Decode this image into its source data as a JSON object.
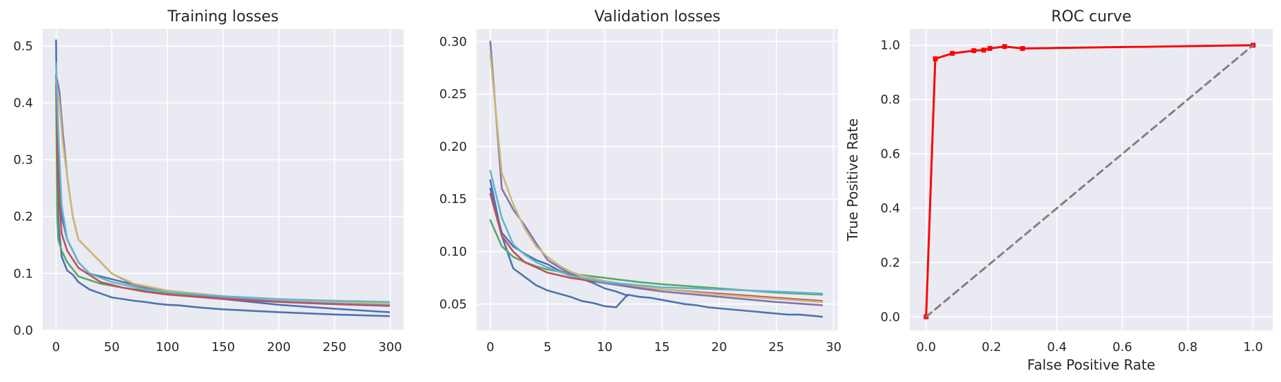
{
  "chart_data": [
    {
      "type": "line",
      "title": "Training losses",
      "xlabel": "",
      "ylabel": "",
      "xlim": [
        -12,
        312
      ],
      "ylim": [
        0.0,
        0.53
      ],
      "xticks": [
        0,
        50,
        100,
        150,
        200,
        250,
        300
      ],
      "xtick_labels": [
        "0",
        "50",
        "100",
        "150",
        "200",
        "250",
        "300"
      ],
      "yticks": [
        0.0,
        0.1,
        0.2,
        0.3,
        0.4,
        0.5
      ],
      "ytick_labels": [
        "0.0",
        "0.1",
        "0.2",
        "0.3",
        "0.4",
        "0.5"
      ],
      "grid": true,
      "series": [
        {
          "color": "#4c72b0",
          "x": [
            0,
            1,
            2,
            3,
            5,
            8,
            10,
            15,
            20,
            30,
            40,
            50,
            60,
            70,
            80,
            90,
            100,
            110,
            120,
            130,
            150,
            200,
            250,
            299
          ],
          "y": [
            0.51,
            0.3,
            0.2,
            0.17,
            0.13,
            0.115,
            0.105,
            0.098,
            0.085,
            0.072,
            0.065,
            0.058,
            0.055,
            0.052,
            0.05,
            0.047,
            0.045,
            0.044,
            0.042,
            0.04,
            0.037,
            0.032,
            0.028,
            0.025
          ]
        },
        {
          "color": "#4c72b0",
          "x": [
            0,
            2,
            5,
            10,
            20,
            30,
            40,
            50,
            60,
            80,
            100,
            120,
            130,
            150,
            200,
            250,
            299
          ],
          "y": [
            0.44,
            0.3,
            0.2,
            0.16,
            0.12,
            0.1,
            0.095,
            0.09,
            0.085,
            0.075,
            0.07,
            0.065,
            0.06,
            0.055,
            0.045,
            0.038,
            0.032
          ]
        },
        {
          "color": "#55a868",
          "x": [
            0,
            1,
            2,
            5,
            10,
            20,
            40,
            60,
            80,
            100,
            150,
            200,
            250,
            299
          ],
          "y": [
            0.43,
            0.2,
            0.16,
            0.14,
            0.12,
            0.095,
            0.082,
            0.075,
            0.07,
            0.065,
            0.058,
            0.053,
            0.05,
            0.047
          ]
        },
        {
          "color": "#c44e52",
          "x": [
            0,
            2,
            5,
            10,
            20,
            40,
            60,
            80,
            100,
            150,
            200,
            250,
            299
          ],
          "y": [
            0.45,
            0.25,
            0.17,
            0.14,
            0.11,
            0.085,
            0.075,
            0.068,
            0.063,
            0.055,
            0.05,
            0.046,
            0.043
          ]
        },
        {
          "color": "#8172b2",
          "x": [
            0,
            3,
            6,
            10,
            15,
            20,
            30,
            50,
            70,
            100,
            150,
            200,
            250,
            299
          ],
          "y": [
            0.45,
            0.42,
            0.35,
            0.27,
            0.2,
            0.16,
            0.14,
            0.1,
            0.08,
            0.068,
            0.058,
            0.052,
            0.048,
            0.045
          ]
        },
        {
          "color": "#ccb974",
          "x": [
            0,
            3,
            6,
            10,
            15,
            20,
            30,
            50,
            70,
            100,
            150,
            200,
            250,
            299
          ],
          "y": [
            0.44,
            0.4,
            0.33,
            0.27,
            0.2,
            0.16,
            0.14,
            0.1,
            0.082,
            0.07,
            0.06,
            0.054,
            0.05,
            0.047
          ]
        },
        {
          "color": "#64b5cd",
          "x": [
            0,
            2,
            5,
            10,
            20,
            30,
            50,
            80,
            100,
            150,
            200,
            250,
            299
          ],
          "y": [
            0.47,
            0.35,
            0.22,
            0.16,
            0.12,
            0.1,
            0.085,
            0.072,
            0.067,
            0.06,
            0.055,
            0.052,
            0.05
          ]
        }
      ]
    },
    {
      "type": "line",
      "title": "Validation losses",
      "xlabel": "",
      "ylabel": "",
      "xlim": [
        -1.2,
        30.4
      ],
      "ylim": [
        0.025,
        0.312
      ],
      "xticks": [
        0,
        5,
        10,
        15,
        20,
        25,
        30
      ],
      "xtick_labels": [
        "0",
        "5",
        "10",
        "15",
        "20",
        "25",
        "30"
      ],
      "yticks": [
        0.05,
        0.1,
        0.15,
        0.2,
        0.25,
        0.3
      ],
      "ytick_labels": [
        "0.05",
        "0.10",
        "0.15",
        "0.20",
        "0.25",
        "0.30"
      ],
      "grid": true,
      "series": [
        {
          "color": "#4c72b0",
          "x": [
            0,
            1,
            2,
            3,
            4,
            5,
            6,
            7,
            8,
            9,
            10,
            11,
            12,
            13,
            14,
            15,
            16,
            17,
            18,
            19,
            20,
            21,
            22,
            23,
            24,
            25,
            26,
            27,
            28,
            29
          ],
          "y": [
            0.168,
            0.115,
            0.084,
            0.076,
            0.068,
            0.063,
            0.06,
            0.057,
            0.053,
            0.051,
            0.048,
            0.047,
            0.059,
            0.057,
            0.056,
            0.054,
            0.052,
            0.05,
            0.049,
            0.047,
            0.046,
            0.045,
            0.044,
            0.043,
            0.042,
            0.041,
            0.04,
            0.04,
            0.039,
            0.038
          ]
        },
        {
          "color": "#4c72b0",
          "x": [
            0,
            1,
            2,
            3,
            4,
            5,
            6,
            7,
            8,
            9,
            10,
            11,
            12
          ],
          "y": [
            0.16,
            0.118,
            0.105,
            0.098,
            0.092,
            0.088,
            0.082,
            0.078,
            0.074,
            0.07,
            0.065,
            0.062,
            0.058
          ]
        },
        {
          "color": "#55a868",
          "x": [
            0,
            1,
            2,
            3,
            4,
            5,
            7,
            10,
            13,
            15,
            20,
            25,
            29
          ],
          "y": [
            0.13,
            0.105,
            0.095,
            0.09,
            0.086,
            0.083,
            0.079,
            0.075,
            0.071,
            0.069,
            0.065,
            0.061,
            0.059
          ]
        },
        {
          "color": "#c44e52",
          "x": [
            0,
            1,
            2,
            3,
            4,
            5,
            7,
            10,
            13,
            15,
            20,
            25,
            29
          ],
          "y": [
            0.155,
            0.115,
            0.1,
            0.09,
            0.085,
            0.08,
            0.075,
            0.07,
            0.066,
            0.064,
            0.06,
            0.056,
            0.053
          ]
        },
        {
          "color": "#8172b2",
          "x": [
            0,
            1,
            2,
            3,
            4,
            5,
            6,
            7,
            8,
            10,
            13,
            15,
            20,
            25,
            29
          ],
          "y": [
            0.3,
            0.16,
            0.14,
            0.125,
            0.108,
            0.092,
            0.085,
            0.079,
            0.075,
            0.07,
            0.065,
            0.062,
            0.057,
            0.052,
            0.049
          ]
        },
        {
          "color": "#ccb974",
          "x": [
            0,
            1,
            2,
            3,
            4,
            5,
            6,
            7,
            8,
            10,
            13,
            15,
            20,
            25,
            29
          ],
          "y": [
            0.288,
            0.175,
            0.145,
            0.122,
            0.105,
            0.095,
            0.087,
            0.081,
            0.077,
            0.072,
            0.067,
            0.064,
            0.059,
            0.055,
            0.052
          ]
        },
        {
          "color": "#64b5cd",
          "x": [
            0,
            1,
            2,
            3,
            4,
            5,
            7,
            10,
            13,
            15,
            20,
            25,
            29
          ],
          "y": [
            0.177,
            0.132,
            0.107,
            0.097,
            0.09,
            0.085,
            0.077,
            0.071,
            0.068,
            0.066,
            0.064,
            0.062,
            0.06
          ]
        }
      ]
    },
    {
      "type": "line",
      "title": "ROC curve",
      "xlabel": "False Positive Rate",
      "ylabel": "True Positive Rate",
      "xlim": [
        -0.05,
        1.06
      ],
      "ylim": [
        -0.05,
        1.06
      ],
      "xticks": [
        0,
        0.2,
        0.4,
        0.6,
        0.8,
        1.0
      ],
      "xtick_labels": [
        "0.0",
        "0.2",
        "0.4",
        "0.6",
        "0.8",
        "1.0"
      ],
      "yticks": [
        0,
        0.2,
        0.4,
        0.6,
        0.8,
        1.0
      ],
      "ytick_labels": [
        "0.0",
        "0.2",
        "0.4",
        "0.6",
        "0.8",
        "1.0"
      ],
      "grid": true,
      "series": [
        {
          "color": "#ff0000",
          "markers": true,
          "x": [
            0.0,
            0.028,
            0.08,
            0.146,
            0.176,
            0.195,
            0.24,
            0.295,
            1.0
          ],
          "y": [
            0.0,
            0.95,
            0.97,
            0.98,
            0.982,
            0.988,
            0.995,
            0.988,
            1.0
          ]
        },
        {
          "color": "#808080",
          "dashed": true,
          "x": [
            0.0,
            1.0
          ],
          "y": [
            0.0,
            1.0
          ]
        }
      ]
    }
  ]
}
